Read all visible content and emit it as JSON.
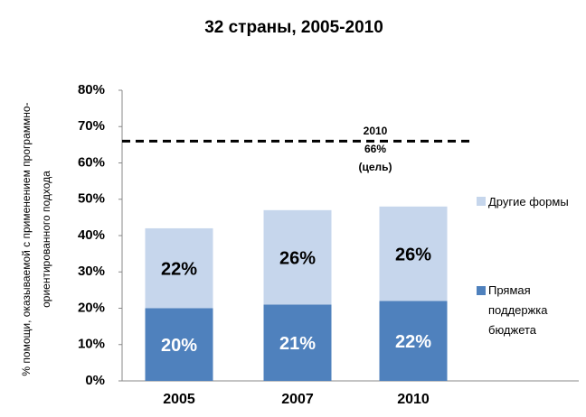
{
  "chart_data": {
    "type": "stacked_bar",
    "title": "32 страны, 2005-2010",
    "y_label": "% помощи, оказываемой с применением программно-ориентированного подхода",
    "categories": [
      "2005",
      "2007",
      "2010"
    ],
    "series": [
      {
        "name": "Прямая поддержка бюджета",
        "color": "#4f81bd",
        "values": [
          20,
          21,
          22
        ],
        "value_labels": [
          "20%",
          "21%",
          "22%"
        ]
      },
      {
        "name": "Другие формы",
        "color": "#c6d6ec",
        "values": [
          22,
          26,
          26
        ],
        "value_labels": [
          "22%",
          "26%",
          "26%"
        ]
      }
    ],
    "ylim": [
      0,
      80
    ],
    "yticks": [
      {
        "value": 0,
        "label": "0%"
      },
      {
        "value": 10,
        "label": "10%"
      },
      {
        "value": 20,
        "label": "20%"
      },
      {
        "value": 30,
        "label": "30%"
      },
      {
        "value": 40,
        "label": "40%"
      },
      {
        "value": 50,
        "label": "50%"
      },
      {
        "value": 60,
        "label": "60%"
      },
      {
        "value": 70,
        "label": "70%"
      },
      {
        "value": 80,
        "label": "80%"
      }
    ],
    "target": {
      "value": 66,
      "year": "2010",
      "label": "66%",
      "note": "(цель)"
    }
  }
}
